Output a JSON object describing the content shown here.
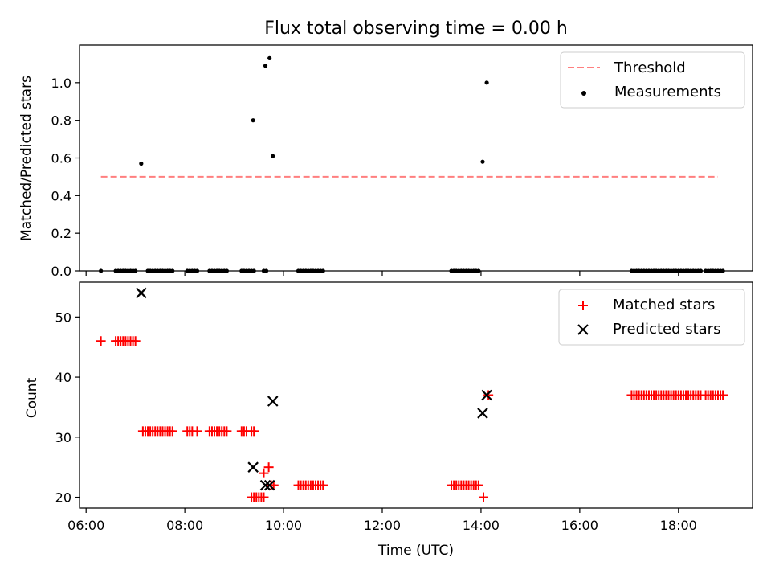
{
  "chart_data": [
    {
      "type": "scatter",
      "title": "Flux total observing time = 0.00 h",
      "xlabel": "",
      "ylabel": "Matched/Predicted stars",
      "xlim": [
        "05:52",
        "19:30"
      ],
      "ylim": [
        0,
        1.2
      ],
      "yticks": [
        "0.0",
        "0.2",
        "0.4",
        "0.6",
        "0.8",
        "1.0"
      ],
      "threshold": {
        "name": "Threshold",
        "value": 0.5,
        "x_start": "06:18",
        "x_end": "18:48",
        "color": "#ff7f7f",
        "style": "dashed"
      },
      "series": [
        {
          "name": "Measurements",
          "color": "#000000",
          "points": [
            [
              "06:18",
              0
            ],
            [
              "06:36",
              0
            ],
            [
              "06:39",
              0
            ],
            [
              "06:42",
              0
            ],
            [
              "06:45",
              0
            ],
            [
              "06:48",
              0
            ],
            [
              "06:51",
              0
            ],
            [
              "06:54",
              0
            ],
            [
              "06:57",
              0
            ],
            [
              "07:00",
              0
            ],
            [
              "07:07",
              0.57
            ],
            [
              "07:15",
              0
            ],
            [
              "07:18",
              0
            ],
            [
              "07:21",
              0
            ],
            [
              "07:24",
              0
            ],
            [
              "07:27",
              0
            ],
            [
              "07:30",
              0
            ],
            [
              "07:33",
              0
            ],
            [
              "07:36",
              0
            ],
            [
              "07:39",
              0
            ],
            [
              "07:42",
              0
            ],
            [
              "07:45",
              0
            ],
            [
              "08:03",
              0
            ],
            [
              "08:06",
              0
            ],
            [
              "08:09",
              0
            ],
            [
              "08:12",
              0
            ],
            [
              "08:15",
              0
            ],
            [
              "08:30",
              0
            ],
            [
              "08:33",
              0
            ],
            [
              "08:36",
              0
            ],
            [
              "08:39",
              0
            ],
            [
              "08:42",
              0
            ],
            [
              "08:45",
              0
            ],
            [
              "08:48",
              0
            ],
            [
              "08:51",
              0
            ],
            [
              "09:09",
              0
            ],
            [
              "09:12",
              0
            ],
            [
              "09:15",
              0
            ],
            [
              "09:18",
              0
            ],
            [
              "09:21",
              0
            ],
            [
              "09:24",
              0
            ],
            [
              "09:23",
              0.8
            ],
            [
              "09:36",
              0
            ],
            [
              "09:39",
              0
            ],
            [
              "09:38",
              1.09
            ],
            [
              "09:43",
              1.13
            ],
            [
              "09:47",
              0.61
            ],
            [
              "10:18",
              0
            ],
            [
              "10:21",
              0
            ],
            [
              "10:24",
              0
            ],
            [
              "10:27",
              0
            ],
            [
              "10:30",
              0
            ],
            [
              "10:33",
              0
            ],
            [
              "10:36",
              0
            ],
            [
              "10:39",
              0
            ],
            [
              "10:42",
              0
            ],
            [
              "10:45",
              0
            ],
            [
              "10:48",
              0
            ],
            [
              "13:24",
              0
            ],
            [
              "13:27",
              0
            ],
            [
              "13:30",
              0
            ],
            [
              "13:33",
              0
            ],
            [
              "13:36",
              0
            ],
            [
              "13:39",
              0
            ],
            [
              "13:42",
              0
            ],
            [
              "13:45",
              0
            ],
            [
              "13:48",
              0
            ],
            [
              "13:51",
              0
            ],
            [
              "13:54",
              0
            ],
            [
              "13:57",
              0
            ],
            [
              "14:02",
              0.58
            ],
            [
              "14:07",
              1.0
            ],
            [
              "17:03",
              0
            ],
            [
              "17:06",
              0
            ],
            [
              "17:09",
              0
            ],
            [
              "17:12",
              0
            ],
            [
              "17:15",
              0
            ],
            [
              "17:18",
              0
            ],
            [
              "17:21",
              0
            ],
            [
              "17:24",
              0
            ],
            [
              "17:27",
              0
            ],
            [
              "17:30",
              0
            ],
            [
              "17:33",
              0
            ],
            [
              "17:36",
              0
            ],
            [
              "17:39",
              0
            ],
            [
              "17:42",
              0
            ],
            [
              "17:45",
              0
            ],
            [
              "17:48",
              0
            ],
            [
              "17:51",
              0
            ],
            [
              "17:54",
              0
            ],
            [
              "17:57",
              0
            ],
            [
              "18:00",
              0
            ],
            [
              "18:03",
              0
            ],
            [
              "18:06",
              0
            ],
            [
              "18:09",
              0
            ],
            [
              "18:12",
              0
            ],
            [
              "18:15",
              0
            ],
            [
              "18:18",
              0
            ],
            [
              "18:21",
              0
            ],
            [
              "18:24",
              0
            ],
            [
              "18:27",
              0
            ],
            [
              "18:33",
              0
            ],
            [
              "18:36",
              0
            ],
            [
              "18:39",
              0
            ],
            [
              "18:42",
              0
            ],
            [
              "18:45",
              0
            ],
            [
              "18:48",
              0
            ],
            [
              "18:51",
              0
            ],
            [
              "18:54",
              0
            ]
          ]
        }
      ],
      "legend": {
        "placement": "top-right",
        "entries": [
          "Threshold",
          "Measurements"
        ]
      }
    },
    {
      "type": "scatter",
      "xlabel": "Time (UTC)",
      "ylabel": "Count",
      "xlim": [
        "05:52",
        "19:30"
      ],
      "ylim": [
        18.2,
        55.8
      ],
      "xticks": [
        "06:00",
        "08:00",
        "10:00",
        "12:00",
        "14:00",
        "16:00",
        "18:00"
      ],
      "yticks": [
        "20",
        "30",
        "40",
        "50"
      ],
      "series": [
        {
          "name": "Matched stars",
          "marker": "plus",
          "color": "#ff0000",
          "points": [
            [
              "06:18",
              46
            ],
            [
              "06:36",
              46
            ],
            [
              "06:39",
              46
            ],
            [
              "06:42",
              46
            ],
            [
              "06:45",
              46
            ],
            [
              "06:48",
              46
            ],
            [
              "06:51",
              46
            ],
            [
              "06:54",
              46
            ],
            [
              "06:57",
              46
            ],
            [
              "07:00",
              46
            ],
            [
              "07:09",
              31
            ],
            [
              "07:12",
              31
            ],
            [
              "07:15",
              31
            ],
            [
              "07:18",
              31
            ],
            [
              "07:21",
              31
            ],
            [
              "07:24",
              31
            ],
            [
              "07:27",
              31
            ],
            [
              "07:30",
              31
            ],
            [
              "07:33",
              31
            ],
            [
              "07:36",
              31
            ],
            [
              "07:39",
              31
            ],
            [
              "07:42",
              31
            ],
            [
              "07:45",
              31
            ],
            [
              "08:03",
              31
            ],
            [
              "08:06",
              31
            ],
            [
              "08:09",
              31
            ],
            [
              "08:15",
              31
            ],
            [
              "08:30",
              31
            ],
            [
              "08:33",
              31
            ],
            [
              "08:36",
              31
            ],
            [
              "08:39",
              31
            ],
            [
              "08:42",
              31
            ],
            [
              "08:45",
              31
            ],
            [
              "08:48",
              31
            ],
            [
              "08:51",
              31
            ],
            [
              "09:09",
              31
            ],
            [
              "09:12",
              31
            ],
            [
              "09:15",
              31
            ],
            [
              "09:21",
              31
            ],
            [
              "09:24",
              31
            ],
            [
              "09:21",
              20
            ],
            [
              "09:24",
              20
            ],
            [
              "09:27",
              20
            ],
            [
              "09:30",
              20
            ],
            [
              "09:33",
              20
            ],
            [
              "09:36",
              20
            ],
            [
              "09:36",
              24
            ],
            [
              "09:42",
              25
            ],
            [
              "09:45",
              22
            ],
            [
              "09:48",
              22
            ],
            [
              "10:18",
              22
            ],
            [
              "10:21",
              22
            ],
            [
              "10:24",
              22
            ],
            [
              "10:27",
              22
            ],
            [
              "10:30",
              22
            ],
            [
              "10:33",
              22
            ],
            [
              "10:36",
              22
            ],
            [
              "10:39",
              22
            ],
            [
              "10:42",
              22
            ],
            [
              "10:45",
              22
            ],
            [
              "10:48",
              22
            ],
            [
              "13:24",
              22
            ],
            [
              "13:27",
              22
            ],
            [
              "13:30",
              22
            ],
            [
              "13:33",
              22
            ],
            [
              "13:36",
              22
            ],
            [
              "13:39",
              22
            ],
            [
              "13:42",
              22
            ],
            [
              "13:45",
              22
            ],
            [
              "13:48",
              22
            ],
            [
              "13:51",
              22
            ],
            [
              "13:54",
              22
            ],
            [
              "13:57",
              22
            ],
            [
              "14:03",
              20
            ],
            [
              "14:09",
              37
            ],
            [
              "17:03",
              37
            ],
            [
              "17:06",
              37
            ],
            [
              "17:09",
              37
            ],
            [
              "17:12",
              37
            ],
            [
              "17:15",
              37
            ],
            [
              "17:18",
              37
            ],
            [
              "17:21",
              37
            ],
            [
              "17:24",
              37
            ],
            [
              "17:27",
              37
            ],
            [
              "17:30",
              37
            ],
            [
              "17:33",
              37
            ],
            [
              "17:36",
              37
            ],
            [
              "17:39",
              37
            ],
            [
              "17:42",
              37
            ],
            [
              "17:45",
              37
            ],
            [
              "17:48",
              37
            ],
            [
              "17:51",
              37
            ],
            [
              "17:54",
              37
            ],
            [
              "17:57",
              37
            ],
            [
              "18:00",
              37
            ],
            [
              "18:03",
              37
            ],
            [
              "18:06",
              37
            ],
            [
              "18:09",
              37
            ],
            [
              "18:12",
              37
            ],
            [
              "18:15",
              37
            ],
            [
              "18:18",
              37
            ],
            [
              "18:21",
              37
            ],
            [
              "18:24",
              37
            ],
            [
              "18:27",
              37
            ],
            [
              "18:33",
              37
            ],
            [
              "18:36",
              37
            ],
            [
              "18:39",
              37
            ],
            [
              "18:42",
              37
            ],
            [
              "18:45",
              37
            ],
            [
              "18:48",
              37
            ],
            [
              "18:51",
              37
            ],
            [
              "18:54",
              37
            ]
          ]
        },
        {
          "name": "Predicted stars",
          "marker": "x",
          "color": "#000000",
          "points": [
            [
              "07:07",
              54
            ],
            [
              "09:23",
              25
            ],
            [
              "09:38",
              22
            ],
            [
              "09:43",
              22
            ],
            [
              "09:47",
              36
            ],
            [
              "14:02",
              34
            ],
            [
              "14:07",
              37
            ]
          ]
        }
      ],
      "legend": {
        "placement": "top-right",
        "entries": [
          "Matched stars",
          "Predicted stars"
        ]
      }
    }
  ]
}
